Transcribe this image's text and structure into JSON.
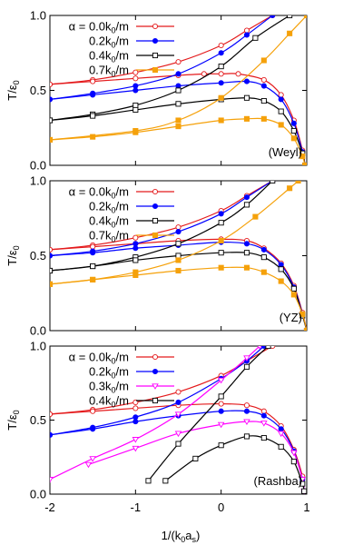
{
  "figure": {
    "x_axis_label": "1/(k0as)",
    "x_ticks": [
      "-2",
      "-1",
      "0",
      "1"
    ]
  },
  "chart_data": [
    {
      "type": "line",
      "panel_label": "(Weyl)",
      "ylabel": "T/ε0",
      "xlim": [
        -2,
        1.0
      ],
      "ylim": [
        0,
        1.0
      ],
      "yticks": [
        "0.0",
        "0.5",
        "1.0"
      ],
      "legend_placement": "top-left",
      "series": [
        {
          "name": "α = 0.0k0/m",
          "color": "#e41a1c",
          "marker": "open-circle",
          "upper": [
            [
              -2.0,
              0.54
            ],
            [
              -1.5,
              0.57
            ],
            [
              -1.0,
              0.62
            ],
            [
              -0.5,
              0.69
            ],
            [
              0.0,
              0.8
            ],
            [
              0.3,
              0.9
            ],
            [
              0.6,
              1.0
            ]
          ],
          "lower": [
            [
              -2.0,
              0.54
            ],
            [
              -1.5,
              0.56
            ],
            [
              -1.0,
              0.58
            ],
            [
              -0.5,
              0.6
            ],
            [
              -0.2,
              0.61
            ],
            [
              0.0,
              0.61
            ],
            [
              0.2,
              0.61
            ],
            [
              0.5,
              0.57
            ],
            [
              0.7,
              0.47
            ],
            [
              0.85,
              0.3
            ],
            [
              0.95,
              0.1
            ],
            [
              0.98,
              0.0
            ]
          ]
        },
        {
          "name": "0.2k0/m",
          "color": "#0000ff",
          "marker": "filled-circle",
          "upper": [
            [
              -2.0,
              0.44
            ],
            [
              -1.5,
              0.48
            ],
            [
              -1.0,
              0.53
            ],
            [
              -0.5,
              0.61
            ],
            [
              0.0,
              0.75
            ],
            [
              0.3,
              0.87
            ],
            [
              0.6,
              1.0
            ]
          ],
          "lower": [
            [
              -2.0,
              0.44
            ],
            [
              -1.5,
              0.47
            ],
            [
              -1.0,
              0.5
            ],
            [
              -0.5,
              0.53
            ],
            [
              0.0,
              0.55
            ],
            [
              0.3,
              0.56
            ],
            [
              0.5,
              0.53
            ],
            [
              0.7,
              0.44
            ],
            [
              0.85,
              0.28
            ],
            [
              0.95,
              0.09
            ],
            [
              0.98,
              0.0
            ]
          ]
        },
        {
          "name": "0.4k0/m",
          "color": "#000000",
          "marker": "open-square",
          "upper": [
            [
              -2.0,
              0.3
            ],
            [
              -1.5,
              0.34
            ],
            [
              -1.0,
              0.4
            ],
            [
              -0.5,
              0.5
            ],
            [
              0.0,
              0.66
            ],
            [
              0.4,
              0.85
            ],
            [
              0.8,
              1.0
            ]
          ],
          "lower": [
            [
              -2.0,
              0.3
            ],
            [
              -1.5,
              0.33
            ],
            [
              -1.0,
              0.37
            ],
            [
              -0.5,
              0.41
            ],
            [
              0.0,
              0.44
            ],
            [
              0.3,
              0.45
            ],
            [
              0.5,
              0.43
            ],
            [
              0.7,
              0.36
            ],
            [
              0.85,
              0.23
            ],
            [
              0.95,
              0.08
            ],
            [
              0.98,
              0.0
            ]
          ]
        },
        {
          "name": "0.7k0/m",
          "color": "#f5a10a",
          "marker": "filled-square",
          "upper": [
            [
              -2.0,
              0.17
            ],
            [
              -1.0,
              0.23
            ],
            [
              -0.5,
              0.3
            ],
            [
              0.0,
              0.45
            ],
            [
              0.5,
              0.7
            ],
            [
              0.8,
              0.88
            ],
            [
              1.0,
              1.0
            ]
          ],
          "lower": [
            [
              -2.0,
              0.17
            ],
            [
              -1.5,
              0.19
            ],
            [
              -1.0,
              0.22
            ],
            [
              -0.5,
              0.26
            ],
            [
              0.0,
              0.3
            ],
            [
              0.3,
              0.31
            ],
            [
              0.5,
              0.31
            ],
            [
              0.7,
              0.27
            ],
            [
              0.85,
              0.18
            ],
            [
              0.95,
              0.06
            ],
            [
              0.98,
              0.0
            ]
          ]
        }
      ]
    },
    {
      "type": "line",
      "panel_label": "(YZ)",
      "ylabel": "T/ε0",
      "xlim": [
        -2,
        1.0
      ],
      "ylim": [
        0,
        1.0
      ],
      "yticks": [
        "0.0",
        "0.5",
        "1.0"
      ],
      "legend_placement": "top-left",
      "series": [
        {
          "name": "α = 0.0k0/m",
          "color": "#e41a1c",
          "marker": "open-circle",
          "upper": [
            [
              -2.0,
              0.54
            ],
            [
              -1.5,
              0.57
            ],
            [
              -1.0,
              0.62
            ],
            [
              -0.5,
              0.69
            ],
            [
              0.0,
              0.8
            ],
            [
              0.3,
              0.9
            ],
            [
              0.6,
              1.0
            ]
          ],
          "lower": [
            [
              -2.0,
              0.54
            ],
            [
              -1.5,
              0.56
            ],
            [
              -1.0,
              0.58
            ],
            [
              -0.5,
              0.6
            ],
            [
              0.0,
              0.61
            ],
            [
              0.3,
              0.6
            ],
            [
              0.5,
              0.55
            ],
            [
              0.7,
              0.45
            ],
            [
              0.85,
              0.3
            ],
            [
              0.95,
              0.12
            ],
            [
              1.0,
              0.0
            ]
          ]
        },
        {
          "name": "0.2k0/m",
          "color": "#0000ff",
          "marker": "filled-circle",
          "upper": [
            [
              -2.0,
              0.5
            ],
            [
              -1.5,
              0.53
            ],
            [
              -1.0,
              0.58
            ],
            [
              -0.5,
              0.66
            ],
            [
              0.0,
              0.78
            ],
            [
              0.3,
              0.89
            ],
            [
              0.6,
              1.0
            ]
          ],
          "lower": [
            [
              -2.0,
              0.5
            ],
            [
              -1.5,
              0.52
            ],
            [
              -1.0,
              0.55
            ],
            [
              -0.5,
              0.57
            ],
            [
              0.0,
              0.59
            ],
            [
              0.3,
              0.58
            ],
            [
              0.5,
              0.54
            ],
            [
              0.7,
              0.44
            ],
            [
              0.85,
              0.29
            ],
            [
              0.95,
              0.11
            ],
            [
              1.0,
              0.0
            ]
          ]
        },
        {
          "name": "0.4k0/m",
          "color": "#000000",
          "marker": "open-square",
          "upper": [
            [
              -2.0,
              0.4
            ],
            [
              -1.5,
              0.43
            ],
            [
              -1.0,
              0.49
            ],
            [
              -0.5,
              0.58
            ],
            [
              0.0,
              0.72
            ],
            [
              0.3,
              0.84
            ],
            [
              0.6,
              1.0
            ]
          ],
          "lower": [
            [
              -2.0,
              0.4
            ],
            [
              -1.5,
              0.43
            ],
            [
              -1.0,
              0.47
            ],
            [
              -0.5,
              0.5
            ],
            [
              0.0,
              0.52
            ],
            [
              0.3,
              0.52
            ],
            [
              0.5,
              0.49
            ],
            [
              0.7,
              0.41
            ],
            [
              0.85,
              0.28
            ],
            [
              0.95,
              0.1
            ],
            [
              1.0,
              0.0
            ]
          ]
        },
        {
          "name": "0.7k0/m",
          "color": "#f5a10a",
          "marker": "filled-square",
          "upper": [
            [
              -2.0,
              0.31
            ],
            [
              -1.5,
              0.34
            ],
            [
              -1.0,
              0.39
            ],
            [
              -0.5,
              0.47
            ],
            [
              0.0,
              0.6
            ],
            [
              0.4,
              0.76
            ],
            [
              0.8,
              0.95
            ],
            [
              0.9,
              1.0
            ]
          ],
          "lower": [
            [
              -2.0,
              0.31
            ],
            [
              -1.5,
              0.34
            ],
            [
              -1.0,
              0.37
            ],
            [
              -0.5,
              0.4
            ],
            [
              0.0,
              0.42
            ],
            [
              0.3,
              0.42
            ],
            [
              0.5,
              0.39
            ],
            [
              0.7,
              0.33
            ],
            [
              0.85,
              0.24
            ],
            [
              0.95,
              0.11
            ],
            [
              1.0,
              0.0
            ]
          ]
        }
      ]
    },
    {
      "type": "line",
      "panel_label": "(Rashba)",
      "ylabel": "T/ε0",
      "xlim": [
        -2,
        1.0
      ],
      "ylim": [
        0,
        1.0
      ],
      "yticks": [
        "0.0",
        "0.5",
        "1.0"
      ],
      "legend_placement": "top-left",
      "series": [
        {
          "name": "α = 0.0k0/m",
          "color": "#e41a1c",
          "marker": "open-circle",
          "upper": [
            [
              -2.0,
              0.54
            ],
            [
              -1.5,
              0.57
            ],
            [
              -1.0,
              0.62
            ],
            [
              -0.5,
              0.69
            ],
            [
              0.0,
              0.8
            ],
            [
              0.3,
              0.9
            ],
            [
              0.6,
              1.0
            ]
          ],
          "lower": [
            [
              -2.0,
              0.54
            ],
            [
              -1.5,
              0.56
            ],
            [
              -1.0,
              0.58
            ],
            [
              -0.5,
              0.6
            ],
            [
              0.0,
              0.61
            ],
            [
              0.3,
              0.6
            ],
            [
              0.5,
              0.56
            ],
            [
              0.7,
              0.46
            ],
            [
              0.85,
              0.3
            ],
            [
              0.95,
              0.12
            ],
            [
              0.97,
              0.02
            ]
          ]
        },
        {
          "name": "0.2k0/m",
          "color": "#0000ff",
          "marker": "filled-circle",
          "upper": [
            [
              -2.0,
              0.4
            ],
            [
              -1.5,
              0.45
            ],
            [
              -1.0,
              0.52
            ],
            [
              -0.5,
              0.62
            ],
            [
              0.0,
              0.78
            ],
            [
              0.3,
              0.9
            ],
            [
              0.5,
              1.0
            ]
          ],
          "lower": [
            [
              -2.0,
              0.4
            ],
            [
              -1.5,
              0.44
            ],
            [
              -1.0,
              0.49
            ],
            [
              -0.5,
              0.53
            ],
            [
              0.0,
              0.56
            ],
            [
              0.3,
              0.56
            ],
            [
              0.5,
              0.53
            ],
            [
              0.7,
              0.44
            ],
            [
              0.85,
              0.29
            ],
            [
              0.95,
              0.1
            ],
            [
              0.97,
              0.02
            ]
          ]
        },
        {
          "name": "0.3k0/m",
          "color": "#ff00ff",
          "marker": "open-triangle",
          "upper": [
            [
              -2.0,
              0.1
            ],
            [
              -1.5,
              0.24
            ],
            [
              -1.0,
              0.37
            ],
            [
              -0.5,
              0.54
            ],
            [
              0.0,
              0.77
            ],
            [
              0.3,
              0.92
            ],
            [
              0.45,
              1.0
            ]
          ],
          "lower": [
            [
              -1.55,
              0.2
            ],
            [
              -1.0,
              0.31
            ],
            [
              -0.5,
              0.41
            ],
            [
              0.0,
              0.47
            ],
            [
              0.3,
              0.49
            ],
            [
              0.5,
              0.48
            ],
            [
              0.7,
              0.41
            ],
            [
              0.85,
              0.28
            ],
            [
              0.95,
              0.1
            ],
            [
              0.97,
              0.02
            ]
          ]
        },
        {
          "name": "0.4k0/m",
          "color": "#000000",
          "marker": "open-square",
          "upper": [
            [
              -0.85,
              0.09
            ],
            [
              -0.5,
              0.34
            ],
            [
              0.0,
              0.66
            ],
            [
              0.3,
              0.86
            ],
            [
              0.55,
              1.0
            ]
          ],
          "lower": [
            [
              -0.65,
              0.09
            ],
            [
              -0.3,
              0.24
            ],
            [
              0.0,
              0.33
            ],
            [
              0.3,
              0.39
            ],
            [
              0.5,
              0.38
            ],
            [
              0.7,
              0.32
            ],
            [
              0.85,
              0.22
            ],
            [
              0.95,
              0.07
            ],
            [
              0.97,
              0.02
            ]
          ]
        }
      ]
    }
  ]
}
